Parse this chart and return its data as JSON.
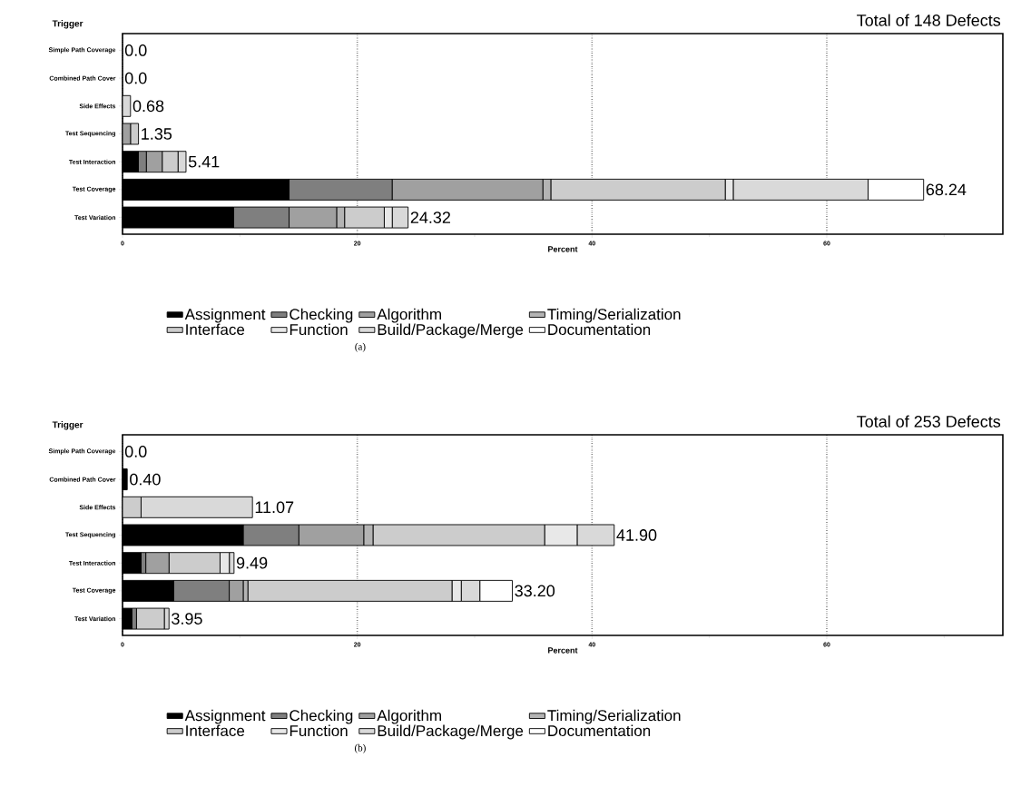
{
  "chart_data": [
    {
      "type": "bar",
      "orientation": "horizontal",
      "stacked": true,
      "title": "Total of 148 Defects",
      "xlabel": "Percent",
      "ylabel": "Trigger",
      "categories": [
        "Simple Path Coverage",
        "Combined Path Cover",
        "Side Effects",
        "Test Sequencing",
        "Test Interaction",
        "Test Coverage",
        "Test Variation"
      ],
      "series": [
        {
          "name": "Assignment",
          "color": "#000000",
          "values": [
            0,
            0,
            0,
            0,
            1.35,
            14.19,
            9.46
          ]
        },
        {
          "name": "Checking",
          "color": "#7f7f7f",
          "values": [
            0,
            0,
            0,
            0,
            0.68,
            8.78,
            4.73
          ]
        },
        {
          "name": "Algorithm",
          "color": "#a0a0a0",
          "values": [
            0,
            0,
            0,
            0.68,
            1.35,
            12.84,
            4.05
          ]
        },
        {
          "name": "Timing/Serialization",
          "color": "#b4b4b4",
          "values": [
            0,
            0,
            0,
            0,
            0,
            0.68,
            0.68
          ]
        },
        {
          "name": "Interface",
          "color": "#cccccc",
          "values": [
            0,
            0,
            0,
            0.68,
            1.35,
            14.86,
            3.38
          ]
        },
        {
          "name": "Function",
          "color": "#e8e8e8",
          "values": [
            0,
            0,
            0,
            0,
            0,
            0.68,
            0.68
          ]
        },
        {
          "name": "Build/Package/Merge",
          "color": "#d9d9d9",
          "values": [
            0,
            0,
            0.68,
            0,
            0.68,
            11.49,
            1.35
          ]
        },
        {
          "name": "Documentation",
          "color": "#ffffff",
          "values": [
            0,
            0,
            0,
            0,
            0,
            4.73,
            0
          ]
        }
      ],
      "totals": [
        "0.0",
        "0.0",
        "0.68",
        "1.35",
        "5.41",
        "68.24",
        "24.32"
      ],
      "xlim": [
        0,
        75
      ],
      "xticks": [
        0,
        {
          "value": 10,
          "label": null
        },
        20,
        {
          "value": 30,
          "label": null
        },
        40,
        {
          "value": 50,
          "label": null
        },
        60,
        {
          "value": 70,
          "label": null
        }
      ],
      "grid": "x",
      "legend": "bottom",
      "annotations": [
        "(a)"
      ]
    },
    {
      "type": "bar",
      "orientation": "horizontal",
      "stacked": true,
      "title": "Total of 253 Defects",
      "xlabel": "Percent",
      "ylabel": "Trigger",
      "categories": [
        "Simple Path Coverage",
        "Combined Path Cover",
        "Side Effects",
        "Test Sequencing",
        "Test Interaction",
        "Test Coverage",
        "Test Variation"
      ],
      "series": [
        {
          "name": "Assignment",
          "color": "#000000",
          "values": [
            0,
            0.4,
            0,
            10.28,
            1.58,
            4.35,
            0.79
          ]
        },
        {
          "name": "Checking",
          "color": "#7f7f7f",
          "values": [
            0,
            0,
            0,
            4.74,
            0.4,
            4.74,
            0.4
          ]
        },
        {
          "name": "Algorithm",
          "color": "#a0a0a0",
          "values": [
            0,
            0,
            0,
            5.53,
            1.98,
            1.19,
            0
          ]
        },
        {
          "name": "Timing/Serialization",
          "color": "#b4b4b4",
          "values": [
            0,
            0,
            0,
            0.79,
            0,
            0.4,
            0
          ]
        },
        {
          "name": "Interface",
          "color": "#cccccc",
          "values": [
            0,
            0,
            1.58,
            14.62,
            4.35,
            17.39,
            2.37
          ]
        },
        {
          "name": "Function",
          "color": "#e8e8e8",
          "values": [
            0,
            0,
            0,
            2.77,
            0.79,
            0.79,
            0
          ]
        },
        {
          "name": "Build/Package/Merge",
          "color": "#d9d9d9",
          "values": [
            0,
            0,
            9.49,
            3.16,
            0.4,
            1.58,
            0.4
          ]
        },
        {
          "name": "Documentation",
          "color": "#ffffff",
          "values": [
            0,
            0,
            0,
            0,
            0,
            2.77,
            0
          ]
        }
      ],
      "totals": [
        "0.0",
        "0.40",
        "11.07",
        "41.90",
        "9.49",
        "33.20",
        "3.95"
      ],
      "xlim": [
        0,
        75
      ],
      "xticks": [
        0,
        {
          "value": 10,
          "label": null
        },
        20,
        {
          "value": 30,
          "label": null
        },
        40,
        {
          "value": 50,
          "label": null
        },
        60,
        {
          "value": 70,
          "label": null
        }
      ],
      "grid": "x",
      "legend": "bottom",
      "annotations": [
        "(b)"
      ]
    }
  ]
}
